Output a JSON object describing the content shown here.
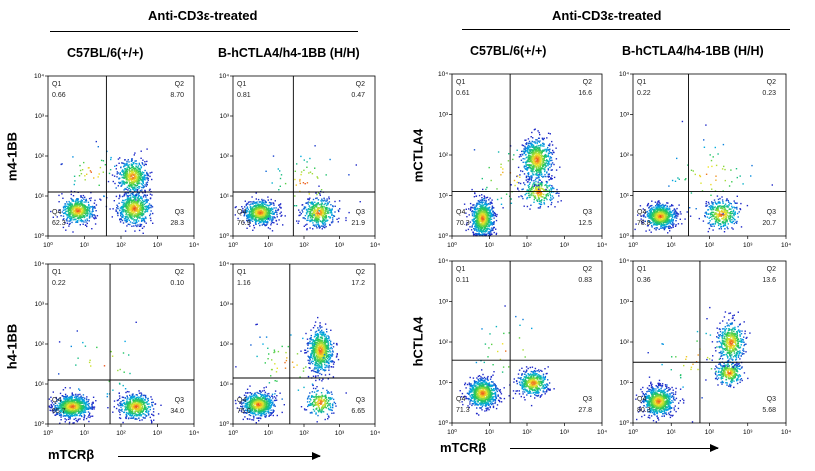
{
  "figure": {
    "left_group_header": "Anti-CD3ε-treated",
    "right_group_header": "Anti-CD3ε-treated",
    "left_columns": [
      "C57BL/6(+/+)",
      "B-hCTLA4/h4-1BB (H/H)"
    ],
    "right_columns": [
      "C57BL/6(+/+)",
      "B-hCTLA4/h4-1BB (H/H)"
    ],
    "left_row_labels": [
      "m4-1BB",
      "h4-1BB"
    ],
    "right_row_labels": [
      "mCTLA4",
      "hCTLA4"
    ],
    "left_x_label": "mTCRβ",
    "right_x_label": "mTCRβ"
  },
  "chart_data": [
    {
      "type": "scatter",
      "panel": "m4-1BB / C57BL/6(+/+)",
      "xscale": "log",
      "yscale": "log",
      "xlim": [
        1,
        10000
      ],
      "ylim": [
        1,
        10000
      ],
      "tick_labels": [
        "10⁰",
        "10¹",
        "10²",
        "10³",
        "10⁴"
      ],
      "quadrant_names": [
        "Q1",
        "Q2",
        "Q3",
        "Q4"
      ],
      "quadrant_values": [
        "0.66",
        "8.70",
        "28.3",
        "62.3"
      ]
    },
    {
      "type": "scatter",
      "panel": "m4-1BB / B-hCTLA4/h4-1BB (H/H)",
      "xscale": "log",
      "yscale": "log",
      "xlim": [
        1,
        10000
      ],
      "ylim": [
        1,
        10000
      ],
      "tick_labels": [
        "10⁰",
        "10¹",
        "10²",
        "10³",
        "10⁴"
      ],
      "quadrant_names": [
        "Q1",
        "Q2",
        "Q3",
        "Q4"
      ],
      "quadrant_values": [
        "0.81",
        "0.47",
        "21.9",
        "76.9"
      ]
    },
    {
      "type": "scatter",
      "panel": "h4-1BB / C57BL/6(+/+)",
      "xscale": "log",
      "yscale": "log",
      "xlim": [
        1,
        10000
      ],
      "ylim": [
        1,
        10000
      ],
      "tick_labels": [
        "10⁰",
        "10¹",
        "10²",
        "10³",
        "10⁴"
      ],
      "quadrant_names": [
        "Q1",
        "Q2",
        "Q3",
        "Q4"
      ],
      "quadrant_values": [
        "0.22",
        "0.10",
        "34.0",
        "65.7"
      ]
    },
    {
      "type": "scatter",
      "panel": "h4-1BB / B-hCTLA4/h4-1BB (H/H)",
      "xscale": "log",
      "yscale": "log",
      "xlim": [
        1,
        10000
      ],
      "ylim": [
        1,
        10000
      ],
      "tick_labels": [
        "10⁰",
        "10¹",
        "10²",
        "10³",
        "10⁴"
      ],
      "quadrant_names": [
        "Q1",
        "Q2",
        "Q3",
        "Q4"
      ],
      "quadrant_values": [
        "1.16",
        "17.2",
        "6.65",
        "75.0"
      ]
    },
    {
      "type": "scatter",
      "panel": "mCTLA4 / C57BL/6(+/+)",
      "xscale": "log",
      "yscale": "log",
      "xlim": [
        1,
        10000
      ],
      "ylim": [
        1,
        10000
      ],
      "tick_labels": [
        "10⁰",
        "10¹",
        "10²",
        "10³",
        "10⁴"
      ],
      "quadrant_names": [
        "Q1",
        "Q2",
        "Q3",
        "Q4"
      ],
      "quadrant_values": [
        "0.61",
        "16.6",
        "12.5",
        "70.3"
      ]
    },
    {
      "type": "scatter",
      "panel": "mCTLA4 / B-hCTLA4/h4-1BB (H/H)",
      "xscale": "log",
      "yscale": "log",
      "xlim": [
        1,
        10000
      ],
      "ylim": [
        1,
        10000
      ],
      "tick_labels": [
        "10⁰",
        "10¹",
        "10²",
        "10³",
        "10⁴"
      ],
      "quadrant_names": [
        "Q1",
        "Q2",
        "Q3",
        "Q4"
      ],
      "quadrant_values": [
        "0.22",
        "0.23",
        "20.7",
        "78.8"
      ]
    },
    {
      "type": "scatter",
      "panel": "hCTLA4 / C57BL/6(+/+)",
      "xscale": "log",
      "yscale": "log",
      "xlim": [
        1,
        10000
      ],
      "ylim": [
        1,
        10000
      ],
      "tick_labels": [
        "10⁰",
        "10¹",
        "10²",
        "10³",
        "10⁴"
      ],
      "quadrant_names": [
        "Q1",
        "Q2",
        "Q3",
        "Q4"
      ],
      "quadrant_values": [
        "0.11",
        "0.83",
        "27.8",
        "71.3"
      ]
    },
    {
      "type": "scatter",
      "panel": "hCTLA4 / B-hCTLA4/h4-1BB (H/H)",
      "xscale": "log",
      "yscale": "log",
      "xlim": [
        1,
        10000
      ],
      "ylim": [
        1,
        10000
      ],
      "tick_labels": [
        "10⁰",
        "10¹",
        "10²",
        "10³",
        "10⁴"
      ],
      "quadrant_names": [
        "Q1",
        "Q2",
        "Q3",
        "Q4"
      ],
      "quadrant_values": [
        "0.36",
        "13.6",
        "5.68",
        "80.3"
      ]
    }
  ]
}
